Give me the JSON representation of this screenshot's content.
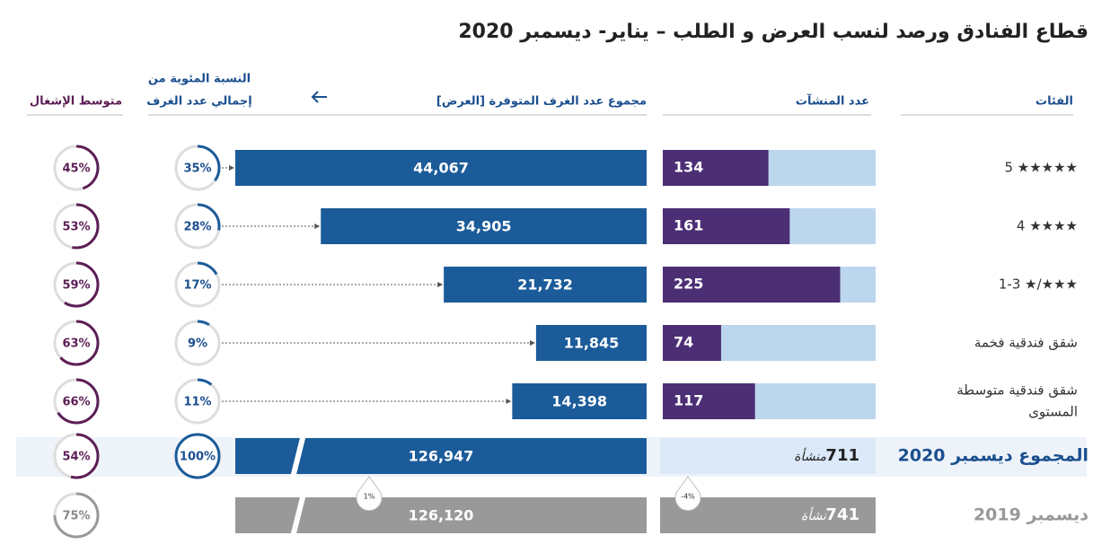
{
  "title": "قطاع الفنادق ورصد لنسب العرض و الطلب – يناير- ديسمبر 2020",
  "headers": {
    "categories": "الفئات",
    "establishments": "عدد المنشآت",
    "rooms": "مجموع عدد الغرف المتوفرة [العرض]",
    "share": [
      "النسبة المئوية من",
      "إجمالي عدد الغرف"
    ],
    "occupancy": "متوسط الإشغال"
  },
  "rows": [
    {
      "category": "★★★★★ 5",
      "establishments": 134,
      "rooms": 44067,
      "rooms_label": "44,067",
      "share": 35,
      "share_label": "35%",
      "occupancy": 45,
      "occupancy_label": "45%"
    },
    {
      "category": "★★★★   4",
      "establishments": 161,
      "rooms": 34905,
      "rooms_label": "34,905",
      "share": 28,
      "share_label": "28%",
      "occupancy": 53,
      "occupancy_label": "53%"
    },
    {
      "category": "★★★/★ 1-3",
      "establishments": 225,
      "rooms": 21732,
      "rooms_label": "21,732",
      "share": 17,
      "share_label": "17%",
      "occupancy": 59,
      "occupancy_label": "59%"
    },
    {
      "category": "شقق فندقية فخمة",
      "establishments": 74,
      "rooms": 11845,
      "rooms_label": "11,845",
      "share": 9,
      "share_label": "9%",
      "occupancy": 63,
      "occupancy_label": "63%"
    },
    {
      "category": [
        "شقق فندقية متوسطة",
        "المستوى"
      ],
      "establishments": 117,
      "rooms": 14398,
      "rooms_label": "14,398",
      "share": 11,
      "share_label": "11%",
      "occupancy": 66,
      "occupancy_label": "66%"
    }
  ],
  "total_2020": {
    "label": "المجموع ديسمبر 2020",
    "establishments": 711,
    "establishments_unit": "منشأة",
    "rooms": 126947,
    "rooms_label": "126,947",
    "share": 100,
    "share_label": "100%",
    "occupancy": 54,
    "occupancy_label": "54%",
    "rooms_change": "1%",
    "establishments_change": "-4%"
  },
  "total_2019": {
    "label": "ديسمبر 2019",
    "establishments": 741,
    "establishments_unit": "نشأة",
    "rooms": 126120,
    "rooms_label": "126,120",
    "occupancy": 75,
    "occupancy_label": "75%"
  }
}
